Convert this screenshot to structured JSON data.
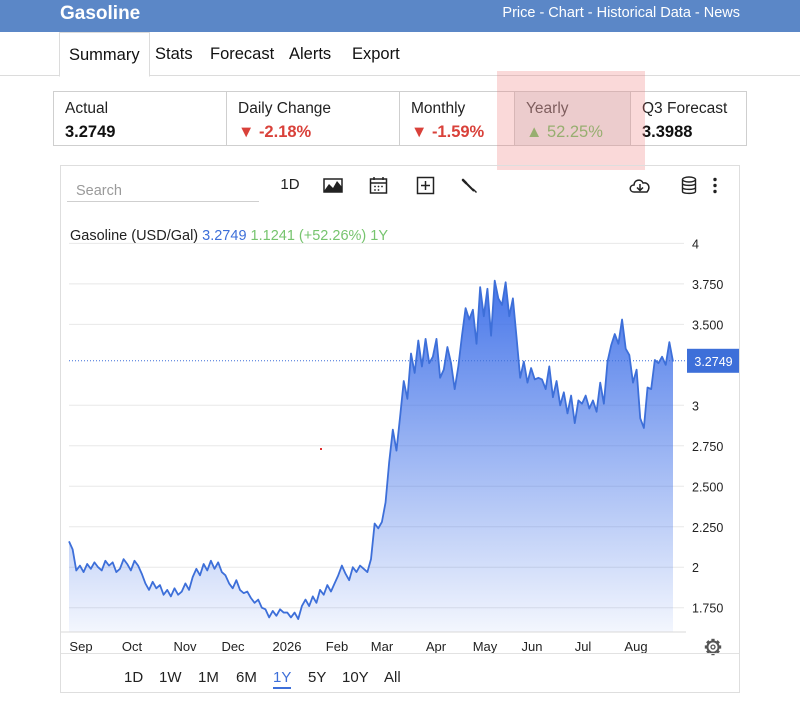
{
  "header": {
    "title": "Gasoline",
    "links": [
      "Price",
      "Chart",
      "Historical Data",
      "News"
    ],
    "separator": "-"
  },
  "tabs": [
    "Summary",
    "Stats",
    "Forecast",
    "Alerts",
    "Export"
  ],
  "cards": [
    {
      "label": "Actual",
      "value": "3.2749",
      "trend": "none"
    },
    {
      "label": "Daily Change",
      "value": "-2.18%",
      "trend": "down"
    },
    {
      "label": "Monthly",
      "value": "-1.59%",
      "trend": "down"
    },
    {
      "label": "Yearly",
      "value": "52.25%",
      "trend": "up"
    },
    {
      "label": "Q3 Forecast",
      "value": "3.3988",
      "trend": "none"
    }
  ],
  "toolbar": {
    "search_placeholder": "Search",
    "interval": "1D",
    "icons": [
      "chart-type-icon",
      "calendar-icon",
      "compare-icon",
      "indicator-wrench-icon",
      "download-icon",
      "database-icon",
      "more-icon"
    ]
  },
  "chart_data": {
    "type": "area",
    "legend": {
      "name": "Gasoline (USD/Gal)",
      "last": "3.2749",
      "change": "1.1241",
      "change_pct": "(+52.26%)",
      "period": "1Y"
    },
    "current_label": "3.2749",
    "ylim": [
      1.6,
      4.2
    ],
    "y_ticks": [
      "4",
      "3.750",
      "3.500",
      "3",
      "2.750",
      "2.500",
      "2.250",
      "2",
      "1.750"
    ],
    "x_labels": [
      "Sep",
      "Oct",
      "Nov",
      "Dec",
      "2026",
      "Feb",
      "Mar",
      "Apr",
      "May",
      "Jun",
      "Jul",
      "Aug"
    ],
    "grid": true,
    "values": [
      2.16,
      2.11,
      1.98,
      2.01,
      1.97,
      2.02,
      1.99,
      2.03,
      2.0,
      1.98,
      2.04,
      2.01,
      2.03,
      1.97,
      1.99,
      2.05,
      2.02,
      1.98,
      2.04,
      2.01,
      1.96,
      1.9,
      1.86,
      1.91,
      1.87,
      1.89,
      1.83,
      1.86,
      1.82,
      1.87,
      1.83,
      1.85,
      1.9,
      1.86,
      1.94,
      1.99,
      1.95,
      2.02,
      1.98,
      2.04,
      1.99,
      2.03,
      1.97,
      1.95,
      1.9,
      1.87,
      1.92,
      1.86,
      1.84,
      1.85,
      1.81,
      1.78,
      1.8,
      1.75,
      1.74,
      1.69,
      1.73,
      1.7,
      1.74,
      1.72,
      1.72,
      1.69,
      1.72,
      1.68,
      1.76,
      1.8,
      1.76,
      1.82,
      1.78,
      1.86,
      1.83,
      1.89,
      1.85,
      1.9,
      1.95,
      2.01,
      1.96,
      1.92,
      2.0,
      1.97,
      2.01,
      1.99,
      1.97,
      2.05,
      2.27,
      2.24,
      2.28,
      2.4,
      2.65,
      2.85,
      2.72,
      2.93,
      3.15,
      3.04,
      3.32,
      3.2,
      3.4,
      3.24,
      3.41,
      3.26,
      3.3,
      3.41,
      3.17,
      3.22,
      3.36,
      3.26,
      3.1,
      3.24,
      3.43,
      3.6,
      3.53,
      3.59,
      3.38,
      3.73,
      3.55,
      3.72,
      3.43,
      3.77,
      3.66,
      3.62,
      3.76,
      3.55,
      3.66,
      3.42,
      3.17,
      3.27,
      3.14,
      3.23,
      3.16,
      3.17,
      3.16,
      3.1,
      3.24,
      3.05,
      3.15,
      3.0,
      3.08,
      2.95,
      3.06,
      2.89,
      3.03,
      3.01,
      3.06,
      2.98,
      3.03,
      2.96,
      3.14,
      3.01,
      3.27,
      3.37,
      3.44,
      3.38,
      3.53,
      3.35,
      3.31,
      3.14,
      3.22,
      2.92,
      2.86,
      3.11,
      3.1,
      3.28,
      3.26,
      3.3,
      3.25,
      3.39,
      3.27
    ]
  },
  "range_buttons": [
    "1D",
    "1W",
    "1M",
    "6M",
    "1Y",
    "5Y",
    "10Y",
    "All"
  ],
  "active_range": "1Y",
  "colors": {
    "header": "#5b87c7",
    "line": "#3d6fd9",
    "down": "#d9413a",
    "up": "#76c46e",
    "legend_value": "#3d6fd9",
    "legend_change": "#76c46e"
  }
}
